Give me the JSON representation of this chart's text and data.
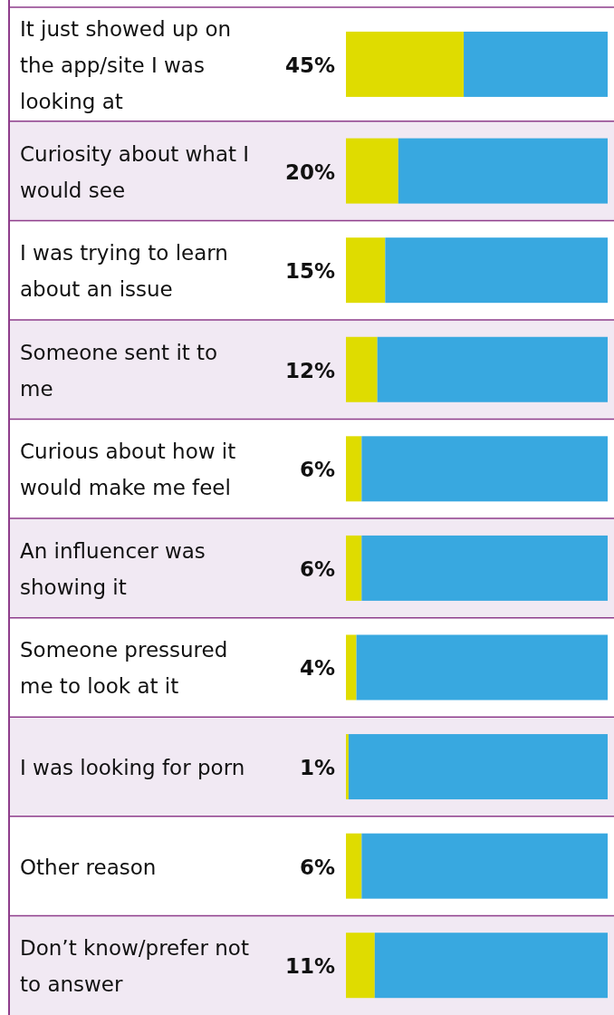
{
  "chart_data": {
    "type": "bar",
    "orientation": "horizontal",
    "stacked": true,
    "xlim": [
      0,
      100
    ],
    "categories": [
      "It just showed up on the app/site I was looking at",
      "Curiosity about what I would see",
      "I was trying to learn about an issue",
      "Someone sent it to me",
      "Curious about how it would make me feel",
      "An influencer was showing it",
      "Someone pressured me to look at it",
      "I was looking for porn",
      "Other reason",
      "Don’t know/prefer not to answer"
    ],
    "series": [
      {
        "color": "#dfdc00",
        "values": [
          45,
          20,
          15,
          12,
          6,
          6,
          4,
          1,
          6,
          11
        ],
        "value_labels": [
          "45%",
          "20%",
          "15%",
          "12%",
          "6%",
          "6%",
          "4%",
          "1%",
          "6%",
          "11%"
        ]
      },
      {
        "color": "#38a8e0",
        "values": [
          55,
          80,
          85,
          88,
          94,
          94,
          96,
          99,
          94,
          89
        ]
      }
    ]
  }
}
